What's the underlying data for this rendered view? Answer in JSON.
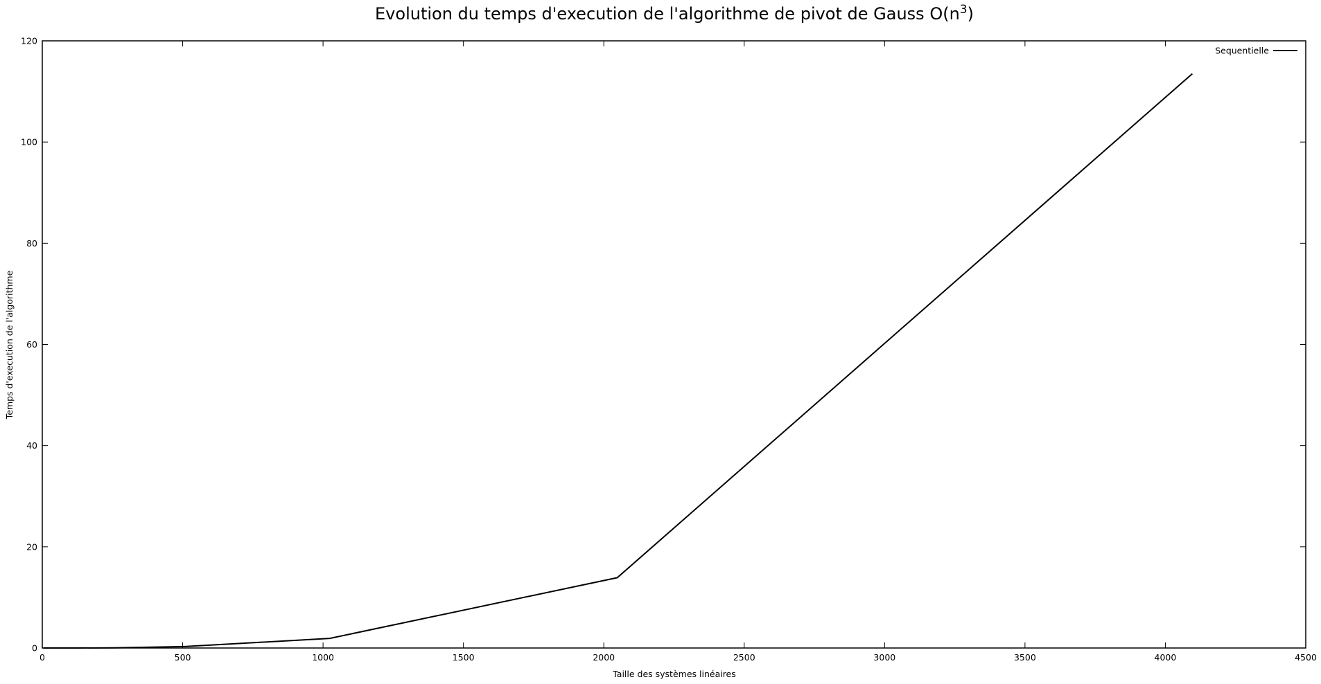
{
  "chart_data": {
    "type": "line",
    "title": "Evolution du temps d'execution de l'algorithme de pivot de Gauss O(n",
    "title_superscript": "3",
    "title_suffix": ")",
    "xlabel": "Taille des systèmes linéaires",
    "ylabel": "Temps d'execution de l'algorithme",
    "xlim": [
      0,
      4500
    ],
    "ylim": [
      0,
      120
    ],
    "x_ticks": [
      "0",
      "500",
      "1000",
      "1500",
      "2000",
      "2500",
      "3000",
      "3500",
      "4000",
      "4500"
    ],
    "y_ticks": [
      "0",
      "20",
      "40",
      "60",
      "80",
      "100",
      "120"
    ],
    "grid": false,
    "legend_position": "top-right",
    "series": [
      {
        "name": "Sequentielle",
        "color": "#000000",
        "x": [
          4,
          8,
          16,
          32,
          64,
          128,
          256,
          512,
          1024,
          2048,
          4096
        ],
        "y": [
          0,
          0,
          0,
          0,
          0,
          0,
          0.03,
          0.3,
          1.9,
          13.9,
          113.5
        ]
      }
    ]
  }
}
